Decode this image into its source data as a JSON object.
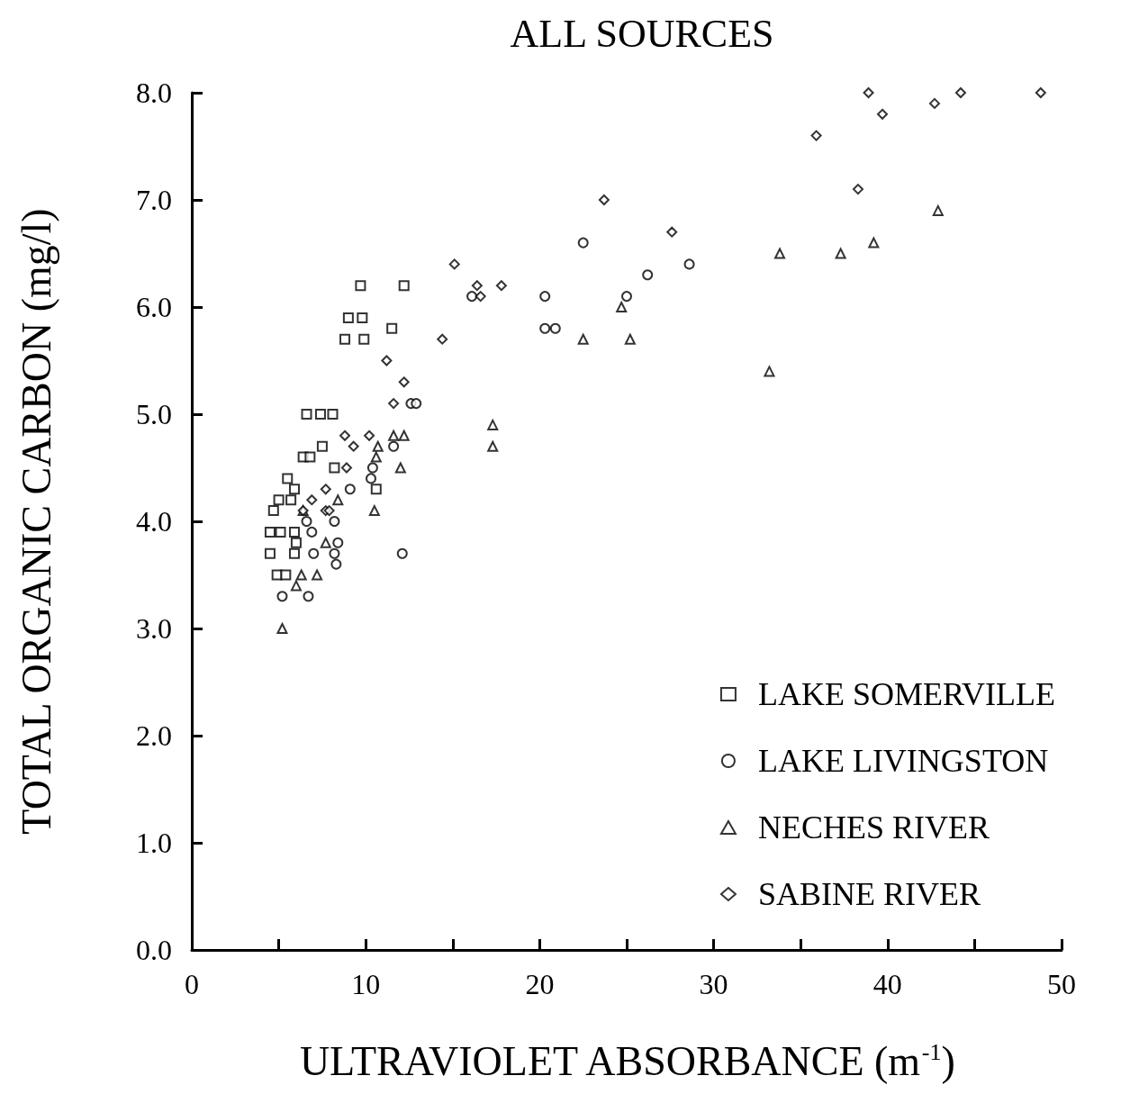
{
  "chart_data": {
    "type": "scatter",
    "title": "ALL SOURCES",
    "xlabel": "ULTRAVIOLET ABSORBANCE (m$^{-1}$)",
    "ylabel": "TOTAL ORGANIC CARBON (mg/l)",
    "xlim": [
      0,
      50
    ],
    "ylim": [
      0,
      8
    ],
    "xticks": [
      0,
      {
        "value": 5,
        "label": null
      },
      10,
      {
        "value": 15,
        "label": null
      },
      20,
      {
        "value": 25,
        "label": null
      },
      30,
      {
        "value": 35,
        "label": null
      },
      40,
      {
        "value": 45,
        "label": null
      },
      50
    ],
    "yticks": [
      {
        "value": 0,
        "label": "0.0"
      },
      {
        "value": 1,
        "label": "1.0"
      },
      {
        "value": 2,
        "label": "2.0"
      },
      {
        "value": 3,
        "label": "3.0"
      },
      {
        "value": 4,
        "label": "4.0"
      },
      {
        "value": 5,
        "label": "5.0"
      },
      {
        "value": 6,
        "label": "6.0"
      },
      {
        "value": 7,
        "label": "7.0"
      },
      {
        "value": 8,
        "label": "8.0"
      }
    ],
    "grid": false,
    "legend": "bottom right",
    "series": [
      {
        "name": "LAKE SOMERVILLE",
        "color": "#000000",
        "marker": "square",
        "x": [
          9.7,
          12.2,
          9.0,
          9.8,
          8.8,
          9.9,
          11.5,
          6.6,
          7.4,
          8.1,
          7.5,
          6.4,
          6.8,
          8.2,
          10.6,
          5.5,
          5.9,
          5.0,
          5.7,
          4.7,
          4.5,
          5.1,
          5.9,
          4.5,
          5.9,
          4.9,
          5.4,
          6.0
        ],
        "values": [
          6.2,
          6.2,
          5.9,
          5.9,
          5.7,
          5.7,
          5.8,
          5.0,
          5.0,
          5.0,
          4.7,
          4.6,
          4.6,
          4.5,
          4.3,
          4.4,
          4.3,
          4.2,
          4.2,
          4.1,
          3.9,
          3.9,
          3.9,
          3.7,
          3.7,
          3.5,
          3.5,
          3.8
        ]
      },
      {
        "name": "LAKE LIVINGSTON",
        "color": "#000000",
        "marker": "circle",
        "x": [
          22.5,
          26.2,
          28.6,
          20.3,
          25.0,
          16.1,
          20.3,
          20.9,
          12.6,
          12.9,
          11.6,
          12.1,
          10.4,
          10.3,
          9.1,
          8.2,
          6.9,
          8.4,
          8.2,
          8.3,
          5.2,
          6.7,
          6.6,
          7.0
        ],
        "values": [
          6.6,
          6.3,
          6.4,
          6.1,
          6.1,
          6.1,
          5.8,
          5.8,
          5.1,
          5.1,
          4.7,
          3.7,
          4.5,
          4.4,
          4.3,
          4.0,
          3.9,
          3.8,
          3.7,
          3.6,
          3.3,
          3.3,
          4.0,
          3.7
        ]
      },
      {
        "name": "NECHES RIVER",
        "color": "#000000",
        "marker": "triangle",
        "x": [
          5.2,
          6.0,
          6.3,
          7.2,
          7.7,
          8.4,
          10.5,
          12.0,
          10.6,
          10.7,
          11.6,
          12.2,
          17.3,
          17.3,
          22.5,
          25.2,
          24.7,
          33.2,
          33.8,
          37.3,
          39.2,
          42.9,
          6.4
        ],
        "values": [
          3.0,
          3.4,
          3.5,
          3.5,
          3.8,
          4.2,
          4.1,
          4.5,
          4.6,
          4.7,
          4.8,
          4.8,
          4.9,
          4.7,
          5.7,
          5.7,
          6.0,
          5.4,
          6.5,
          6.5,
          6.6,
          6.9,
          4.1
        ]
      },
      {
        "name": "SABINE RIVER",
        "color": "#000000",
        "marker": "diamond",
        "x": [
          15.1,
          16.4,
          16.6,
          17.8,
          14.4,
          11.2,
          12.2,
          11.6,
          23.7,
          27.6,
          35.9,
          38.9,
          39.7,
          42.7,
          44.2,
          48.8,
          38.3,
          8.8,
          9.3,
          10.2,
          8.9,
          7.7,
          7.7,
          6.9,
          7.9,
          6.4
        ],
        "values": [
          6.4,
          6.2,
          6.1,
          6.2,
          5.7,
          5.5,
          5.3,
          5.1,
          7.0,
          6.7,
          7.6,
          8.0,
          7.8,
          7.9,
          8.0,
          8.0,
          7.1,
          4.8,
          4.7,
          4.8,
          4.5,
          4.3,
          4.1,
          4.2,
          4.1,
          4.1
        ]
      }
    ]
  }
}
